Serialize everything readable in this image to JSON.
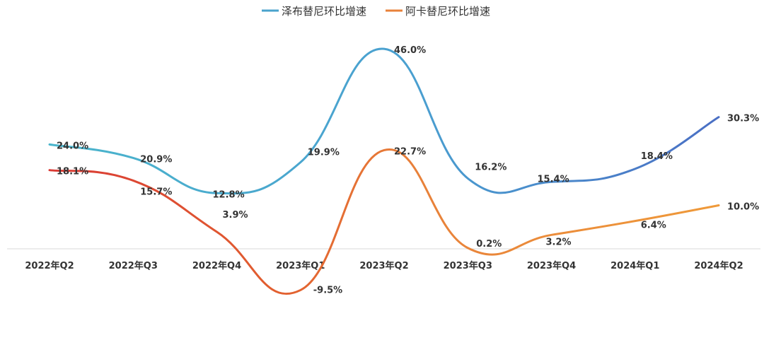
{
  "chart_data": {
    "type": "line",
    "categories": [
      "2022年Q2",
      "2022年Q3",
      "2022年Q4",
      "2023年Q1",
      "2023年Q2",
      "2023年Q3",
      "2023年Q4",
      "2024年Q1",
      "2024年Q2"
    ],
    "series": [
      {
        "name": "泽布替尼环比增速",
        "values": [
          24.0,
          20.9,
          12.8,
          19.9,
          46.0,
          16.2,
          15.4,
          18.4,
          30.3
        ],
        "labels": [
          "24.0%",
          "20.9%",
          "12.8%",
          "19.9%",
          "46.0%",
          "16.2%",
          "15.4%",
          "18.4%",
          "30.3%"
        ],
        "color": "#4aa3cc",
        "color_end": "#4a6fc4"
      },
      {
        "name": "阿卡替尼环比增速",
        "values": [
          18.1,
          15.7,
          3.9,
          -9.5,
          22.7,
          0.2,
          3.2,
          6.4,
          10.0
        ],
        "labels": [
          "18.1%",
          "15.7%",
          "3.9%",
          "-9.5%",
          "22.7%",
          "0.2%",
          "3.2%",
          "6.4%",
          "10.0%"
        ],
        "color": "#e8813a",
        "color_start": "#d94535"
      }
    ],
    "unit": "%",
    "legend_position": "top-center",
    "grid": false,
    "smooth": true
  }
}
